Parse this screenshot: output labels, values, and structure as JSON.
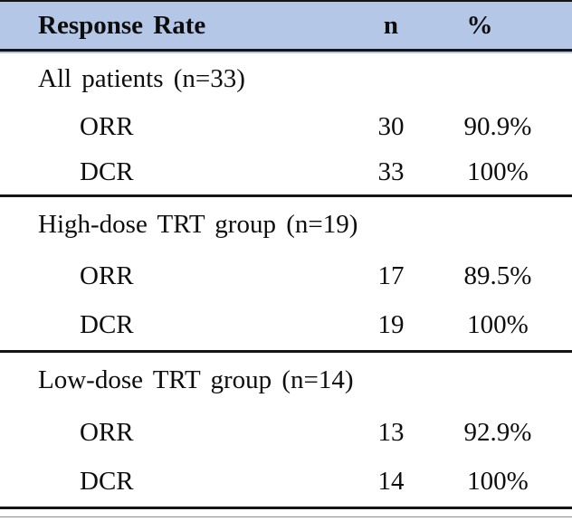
{
  "table": {
    "header": {
      "columns": [
        "Response Rate",
        "n",
        "%"
      ]
    },
    "sections": [
      {
        "title": "All patients (n=33)",
        "rows": [
          {
            "label": "ORR",
            "n": "30",
            "pct": "90.9%"
          },
          {
            "label": "DCR",
            "n": "33",
            "pct": "100%"
          }
        ]
      },
      {
        "title": "High-dose TRT group (n=19)",
        "rows": [
          {
            "label": "ORR",
            "n": "17",
            "pct": "89.5%"
          },
          {
            "label": "DCR",
            "n": "19",
            "pct": "100%"
          }
        ]
      },
      {
        "title": "Low-dose TRT group (n=14)",
        "rows": [
          {
            "label": "ORR",
            "n": "13",
            "pct": "92.9%"
          },
          {
            "label": "DCR",
            "n": "14",
            "pct": "100%"
          }
        ]
      }
    ]
  },
  "colors": {
    "header_bg": "#b4c7e7",
    "rule": "#141414",
    "thin_rule": "#8c8c8c",
    "text": "#0d0d0d"
  }
}
